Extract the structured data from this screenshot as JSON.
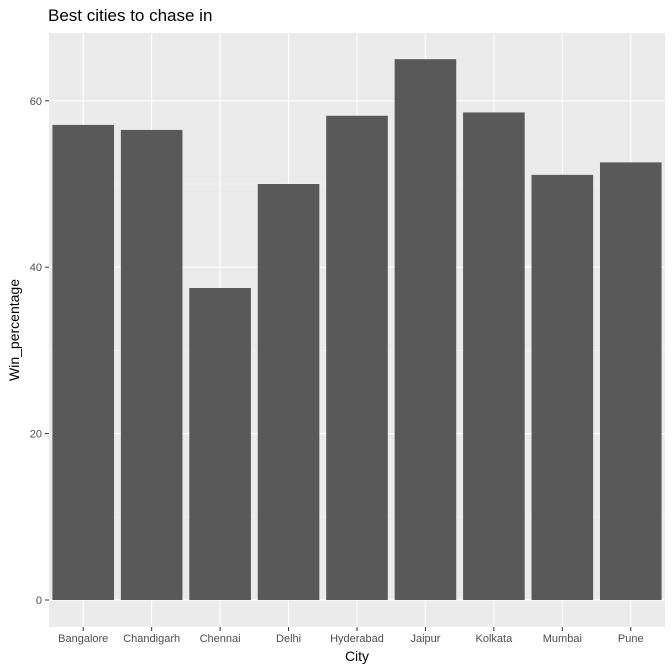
{
  "chart_data": {
    "type": "bar",
    "title": "Best cities to chase in",
    "xlabel": "City",
    "ylabel": "Win_percentage",
    "categories": [
      "Bangalore",
      "Chandigarh",
      "Chennai",
      "Delhi",
      "Hyderabad",
      "Jaipur",
      "Kolkata",
      "Mumbai",
      "Pune"
    ],
    "values": [
      57.1,
      56.5,
      37.5,
      50.0,
      58.2,
      65.0,
      58.6,
      51.1,
      52.6
    ],
    "ylim": [
      0,
      68.5
    ],
    "yticks": [
      0,
      20,
      40,
      60
    ],
    "grid": true,
    "legend": "none",
    "colors": {
      "bar": "#595959",
      "panel": "#ebebeb",
      "grid_major": "#ffffff",
      "grid_minor": "#f5f5f5",
      "tick": "#333333"
    }
  }
}
